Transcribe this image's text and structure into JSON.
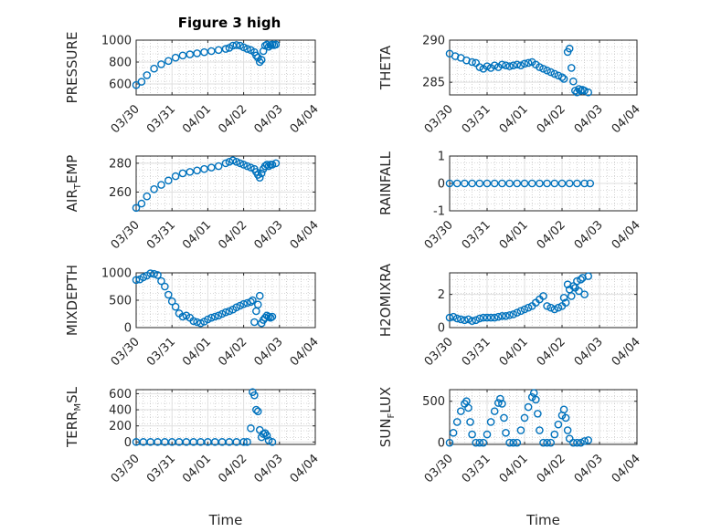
{
  "title": "Figure 3 high",
  "colors": {
    "marker": "#0072BD",
    "axis": "#262626",
    "grid": "#dfdfdf",
    "minor_grid": "#b4b4b4"
  },
  "chart_data": [
    {
      "type": "scatter",
      "ylabel": "PRESSURE",
      "ylim": [
        500,
        1000
      ],
      "yticks": [
        600,
        800,
        1000
      ],
      "xlim": [
        0,
        5
      ],
      "xticks": [
        "03/30",
        "03/31",
        "04/01",
        "04/02",
        "04/03",
        "04/04"
      ],
      "grid": true,
      "xlabel": "",
      "ylabel_sub": [],
      "points": [
        [
          0,
          590
        ],
        [
          0.15,
          620
        ],
        [
          0.3,
          680
        ],
        [
          0.5,
          740
        ],
        [
          0.7,
          780
        ],
        [
          0.9,
          810
        ],
        [
          1.1,
          840
        ],
        [
          1.3,
          860
        ],
        [
          1.5,
          870
        ],
        [
          1.7,
          880
        ],
        [
          1.9,
          890
        ],
        [
          2.1,
          900
        ],
        [
          2.3,
          910
        ],
        [
          2.5,
          920
        ],
        [
          2.6,
          930
        ],
        [
          2.7,
          950
        ],
        [
          2.8,
          955
        ],
        [
          2.9,
          950
        ],
        [
          3.0,
          935
        ],
        [
          3.1,
          920
        ],
        [
          3.2,
          910
        ],
        [
          3.3,
          890
        ],
        [
          3.35,
          860
        ],
        [
          3.4,
          840
        ],
        [
          3.45,
          800
        ],
        [
          3.5,
          820
        ],
        [
          3.55,
          900
        ],
        [
          3.6,
          950
        ],
        [
          3.65,
          960
        ],
        [
          3.7,
          940
        ],
        [
          3.75,
          955
        ],
        [
          3.8,
          960
        ],
        [
          3.85,
          955
        ],
        [
          3.9,
          960
        ]
      ]
    },
    {
      "type": "scatter",
      "ylabel": "THETA",
      "ylim": [
        283.5,
        290
      ],
      "yticks": [
        285,
        290
      ],
      "xlim": [
        0,
        5
      ],
      "xticks": [
        "03/30",
        "03/31",
        "04/01",
        "04/02",
        "04/03",
        "04/04"
      ],
      "grid": true,
      "xlabel": "",
      "ylabel_sub": [],
      "points": [
        [
          0,
          288.4
        ],
        [
          0.15,
          288.1
        ],
        [
          0.3,
          287.9
        ],
        [
          0.45,
          287.6
        ],
        [
          0.6,
          287.4
        ],
        [
          0.7,
          287.3
        ],
        [
          0.8,
          286.8
        ],
        [
          0.9,
          286.6
        ],
        [
          1.0,
          286.9
        ],
        [
          1.1,
          286.7
        ],
        [
          1.2,
          287.0
        ],
        [
          1.3,
          286.8
        ],
        [
          1.4,
          287.1
        ],
        [
          1.5,
          287.0
        ],
        [
          1.6,
          286.9
        ],
        [
          1.7,
          287.0
        ],
        [
          1.8,
          287.1
        ],
        [
          1.9,
          287.0
        ],
        [
          2.0,
          287.2
        ],
        [
          2.1,
          287.3
        ],
        [
          2.2,
          287.4
        ],
        [
          2.3,
          287.1
        ],
        [
          2.4,
          286.8
        ],
        [
          2.5,
          286.6
        ],
        [
          2.6,
          286.4
        ],
        [
          2.7,
          286.2
        ],
        [
          2.8,
          286.0
        ],
        [
          2.9,
          285.8
        ],
        [
          3.0,
          285.6
        ],
        [
          3.05,
          285.4
        ],
        [
          3.15,
          288.6
        ],
        [
          3.2,
          289.0
        ],
        [
          3.25,
          286.7
        ],
        [
          3.3,
          285.1
        ],
        [
          3.35,
          284.0
        ],
        [
          3.4,
          283.8
        ],
        [
          3.45,
          284.2
        ],
        [
          3.5,
          284.0
        ],
        [
          3.55,
          284.1
        ],
        [
          3.6,
          284.0
        ],
        [
          3.7,
          283.8
        ]
      ]
    },
    {
      "type": "scatter",
      "ylabel": "AIR",
      "ylabel_sub": [
        "T",
        "EMP"
      ],
      "ylim": [
        247,
        285
      ],
      "yticks": [
        260,
        280
      ],
      "xlim": [
        0,
        5
      ],
      "xticks": [
        "03/30",
        "03/31",
        "04/01",
        "04/02",
        "04/03",
        "04/04"
      ],
      "grid": true,
      "xlabel": "",
      "points": [
        [
          0,
          249
        ],
        [
          0.15,
          252
        ],
        [
          0.3,
          257
        ],
        [
          0.5,
          262
        ],
        [
          0.7,
          265
        ],
        [
          0.9,
          268
        ],
        [
          1.1,
          271
        ],
        [
          1.3,
          273
        ],
        [
          1.5,
          274
        ],
        [
          1.7,
          275
        ],
        [
          1.9,
          276
        ],
        [
          2.1,
          277
        ],
        [
          2.3,
          278
        ],
        [
          2.5,
          280
        ],
        [
          2.6,
          281
        ],
        [
          2.7,
          282
        ],
        [
          2.8,
          281
        ],
        [
          2.9,
          280
        ],
        [
          3.0,
          279
        ],
        [
          3.1,
          278
        ],
        [
          3.2,
          277
        ],
        [
          3.3,
          276
        ],
        [
          3.35,
          274
        ],
        [
          3.4,
          272
        ],
        [
          3.45,
          270
        ],
        [
          3.5,
          273
        ],
        [
          3.55,
          276
        ],
        [
          3.6,
          278
        ],
        [
          3.65,
          279
        ],
        [
          3.7,
          278
        ],
        [
          3.75,
          279
        ],
        [
          3.8,
          279
        ],
        [
          3.9,
          280
        ]
      ]
    },
    {
      "type": "scatter",
      "ylabel": "RAINFALL",
      "ylim": [
        -1,
        1
      ],
      "yticks": [
        -1,
        0,
        1
      ],
      "xlim": [
        0,
        5
      ],
      "xticks": [
        "03/30",
        "03/31",
        "04/01",
        "04/02",
        "04/03",
        "04/04"
      ],
      "grid": true,
      "xlabel": "",
      "ylabel_sub": [],
      "points": [
        [
          0,
          0
        ],
        [
          0.2,
          0
        ],
        [
          0.4,
          0
        ],
        [
          0.6,
          0
        ],
        [
          0.8,
          0
        ],
        [
          1.0,
          0
        ],
        [
          1.2,
          0
        ],
        [
          1.4,
          0
        ],
        [
          1.6,
          0
        ],
        [
          1.8,
          0
        ],
        [
          2.0,
          0
        ],
        [
          2.2,
          0
        ],
        [
          2.4,
          0
        ],
        [
          2.6,
          0
        ],
        [
          2.8,
          0
        ],
        [
          3.0,
          0
        ],
        [
          3.2,
          0
        ],
        [
          3.4,
          0
        ],
        [
          3.6,
          0
        ],
        [
          3.75,
          0
        ]
      ]
    },
    {
      "type": "scatter",
      "ylabel": "MIXDEPTH",
      "ylim": [
        0,
        1000
      ],
      "yticks": [
        0,
        500,
        1000
      ],
      "xlim": [
        0,
        5
      ],
      "xticks": [
        "03/30",
        "03/31",
        "04/01",
        "04/02",
        "04/03",
        "04/04"
      ],
      "grid": true,
      "xlabel": "",
      "ylabel_sub": [],
      "points": [
        [
          0,
          870
        ],
        [
          0.1,
          880
        ],
        [
          0.2,
          920
        ],
        [
          0.3,
          950
        ],
        [
          0.4,
          990
        ],
        [
          0.5,
          980
        ],
        [
          0.6,
          960
        ],
        [
          0.7,
          850
        ],
        [
          0.8,
          750
        ],
        [
          0.9,
          600
        ],
        [
          1.0,
          480
        ],
        [
          1.1,
          380
        ],
        [
          1.2,
          260
        ],
        [
          1.3,
          200
        ],
        [
          1.4,
          220
        ],
        [
          1.5,
          180
        ],
        [
          1.6,
          120
        ],
        [
          1.7,
          100
        ],
        [
          1.8,
          80
        ],
        [
          1.9,
          110
        ],
        [
          2.0,
          150
        ],
        [
          2.1,
          180
        ],
        [
          2.2,
          200
        ],
        [
          2.3,
          220
        ],
        [
          2.4,
          250
        ],
        [
          2.5,
          280
        ],
        [
          2.6,
          300
        ],
        [
          2.7,
          330
        ],
        [
          2.8,
          370
        ],
        [
          2.9,
          400
        ],
        [
          3.0,
          430
        ],
        [
          3.1,
          450
        ],
        [
          3.2,
          470
        ],
        [
          3.25,
          500
        ],
        [
          3.3,
          100
        ],
        [
          3.35,
          300
        ],
        [
          3.4,
          420
        ],
        [
          3.45,
          580
        ],
        [
          3.5,
          80
        ],
        [
          3.55,
          140
        ],
        [
          3.6,
          180
        ],
        [
          3.65,
          220
        ],
        [
          3.7,
          200
        ],
        [
          3.75,
          180
        ],
        [
          3.8,
          200
        ]
      ]
    },
    {
      "type": "scatter",
      "ylabel": "H2OMIXRA",
      "ylim": [
        0,
        3.3
      ],
      "yticks": [
        0,
        2
      ],
      "xlim": [
        0,
        5
      ],
      "xticks": [
        "03/30",
        "03/31",
        "04/01",
        "04/02",
        "04/03",
        "04/04"
      ],
      "grid": true,
      "xlabel": "",
      "ylabel_sub": [],
      "points": [
        [
          0,
          0.6
        ],
        [
          0.1,
          0.65
        ],
        [
          0.2,
          0.55
        ],
        [
          0.3,
          0.5
        ],
        [
          0.4,
          0.45
        ],
        [
          0.5,
          0.5
        ],
        [
          0.6,
          0.4
        ],
        [
          0.7,
          0.45
        ],
        [
          0.8,
          0.55
        ],
        [
          0.9,
          0.6
        ],
        [
          1.0,
          0.6
        ],
        [
          1.1,
          0.6
        ],
        [
          1.2,
          0.6
        ],
        [
          1.3,
          0.65
        ],
        [
          1.4,
          0.7
        ],
        [
          1.5,
          0.7
        ],
        [
          1.6,
          0.75
        ],
        [
          1.7,
          0.8
        ],
        [
          1.8,
          0.9
        ],
        [
          1.9,
          1.0
        ],
        [
          2.0,
          1.1
        ],
        [
          2.1,
          1.2
        ],
        [
          2.2,
          1.3
        ],
        [
          2.3,
          1.5
        ],
        [
          2.4,
          1.7
        ],
        [
          2.5,
          1.9
        ],
        [
          2.6,
          1.3
        ],
        [
          2.7,
          1.2
        ],
        [
          2.8,
          1.1
        ],
        [
          2.9,
          1.2
        ],
        [
          3.0,
          1.3
        ],
        [
          3.05,
          1.8
        ],
        [
          3.1,
          1.5
        ],
        [
          3.15,
          2.6
        ],
        [
          3.2,
          2.3
        ],
        [
          3.25,
          1.9
        ],
        [
          3.3,
          2.5
        ],
        [
          3.35,
          2.4
        ],
        [
          3.4,
          2.8
        ],
        [
          3.45,
          2.2
        ],
        [
          3.5,
          2.9
        ],
        [
          3.55,
          3.0
        ],
        [
          3.6,
          2.0
        ],
        [
          3.7,
          3.1
        ]
      ]
    },
    {
      "type": "scatter",
      "ylabel": "TERR",
      "ylabel_sub": [
        "M",
        "SL"
      ],
      "ylim": [
        -30,
        650
      ],
      "yticks": [
        0,
        200,
        400,
        600
      ],
      "xlim": [
        0,
        5
      ],
      "xticks": [
        "03/30",
        "03/31",
        "04/01",
        "04/02",
        "04/03",
        "04/04"
      ],
      "grid": true,
      "xlabel": "Time",
      "points": [
        [
          0,
          0
        ],
        [
          0.2,
          0
        ],
        [
          0.4,
          0
        ],
        [
          0.6,
          0
        ],
        [
          0.8,
          0
        ],
        [
          1.0,
          0
        ],
        [
          1.2,
          0
        ],
        [
          1.4,
          0
        ],
        [
          1.6,
          0
        ],
        [
          1.8,
          0
        ],
        [
          2.0,
          0
        ],
        [
          2.2,
          0
        ],
        [
          2.4,
          0
        ],
        [
          2.6,
          0
        ],
        [
          2.8,
          0
        ],
        [
          3.0,
          0
        ],
        [
          3.1,
          0
        ],
        [
          3.2,
          170
        ],
        [
          3.25,
          620
        ],
        [
          3.3,
          580
        ],
        [
          3.35,
          400
        ],
        [
          3.4,
          380
        ],
        [
          3.45,
          150
        ],
        [
          3.5,
          60
        ],
        [
          3.55,
          100
        ],
        [
          3.6,
          110
        ],
        [
          3.65,
          80
        ],
        [
          3.7,
          20
        ],
        [
          3.8,
          0
        ]
      ]
    },
    {
      "type": "scatter",
      "ylabel": "SUN",
      "ylabel_sub": [
        "F",
        "LUX"
      ],
      "ylim": [
        -20,
        640
      ],
      "yticks": [
        0,
        500
      ],
      "xlim": [
        0,
        5
      ],
      "xticks": [
        "03/30",
        "03/31",
        "04/01",
        "04/02",
        "04/03",
        "04/04"
      ],
      "grid": true,
      "xlabel": "Time",
      "points": [
        [
          0,
          0
        ],
        [
          0.1,
          120
        ],
        [
          0.2,
          250
        ],
        [
          0.3,
          380
        ],
        [
          0.4,
          470
        ],
        [
          0.45,
          500
        ],
        [
          0.5,
          420
        ],
        [
          0.55,
          250
        ],
        [
          0.6,
          100
        ],
        [
          0.7,
          0
        ],
        [
          0.8,
          0
        ],
        [
          0.9,
          0
        ],
        [
          1.0,
          100
        ],
        [
          1.1,
          250
        ],
        [
          1.2,
          380
        ],
        [
          1.3,
          480
        ],
        [
          1.35,
          530
        ],
        [
          1.4,
          470
        ],
        [
          1.45,
          300
        ],
        [
          1.5,
          120
        ],
        [
          1.6,
          0
        ],
        [
          1.7,
          0
        ],
        [
          1.8,
          0
        ],
        [
          1.9,
          150
        ],
        [
          2.0,
          300
        ],
        [
          2.1,
          430
        ],
        [
          2.2,
          550
        ],
        [
          2.25,
          600
        ],
        [
          2.3,
          520
        ],
        [
          2.35,
          350
        ],
        [
          2.4,
          150
        ],
        [
          2.5,
          0
        ],
        [
          2.6,
          0
        ],
        [
          2.7,
          0
        ],
        [
          2.8,
          100
        ],
        [
          2.9,
          220
        ],
        [
          3.0,
          330
        ],
        [
          3.05,
          400
        ],
        [
          3.1,
          300
        ],
        [
          3.15,
          150
        ],
        [
          3.2,
          50
        ],
        [
          3.3,
          0
        ],
        [
          3.4,
          0
        ],
        [
          3.5,
          0
        ],
        [
          3.6,
          20
        ],
        [
          3.7,
          30
        ]
      ]
    }
  ]
}
